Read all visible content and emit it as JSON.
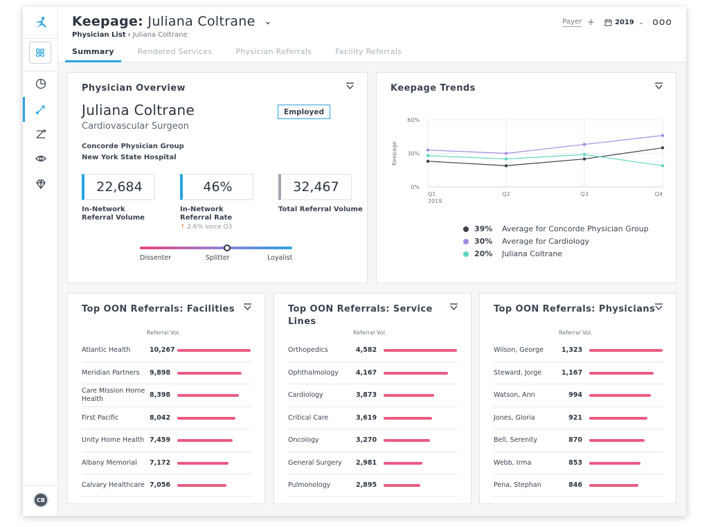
{
  "header": {
    "title_prefix": "Keepage:",
    "title_name": "Juliana Coltrane",
    "breadcrumb": [
      "Physician List",
      "Juliana Coltrane"
    ],
    "payer_label": "Payer",
    "year": "2019",
    "tabs": [
      {
        "label": "Summary",
        "active": true
      },
      {
        "label": "Rendered Services",
        "active": false
      },
      {
        "label": "Physician Referrals",
        "active": false
      },
      {
        "label": "Facility Referrals",
        "active": false
      }
    ]
  },
  "sidebar": {
    "icons": [
      "atom-icon",
      "pie-chart-icon",
      "referral-icon",
      "route-icon",
      "eye-icon",
      "diamond-icon"
    ],
    "active_index": 2,
    "avatar_initials": "CB"
  },
  "overview": {
    "title": "Physician Overview",
    "name": "Juliana Coltrane",
    "specialty": "Cardiovascular Surgeon",
    "badge": "Employed",
    "group": "Concorde Physician Group",
    "hospital": "New York State Hospital",
    "stats": [
      {
        "value": "22,684",
        "label_line1": "In-Network",
        "label_line2": "Referral Volume"
      },
      {
        "value": "46%",
        "label_line1": "In-Network",
        "label_line2": "Referral Rate"
      },
      {
        "value": "32,467",
        "label_line1": "Total Referral Volume",
        "label_line2": ""
      }
    ],
    "rate_note": "2.6% since Q3",
    "slider": {
      "labels": [
        "Dissenter",
        "Splitter",
        "Loyalist"
      ],
      "position": 0.57
    }
  },
  "trends": {
    "title": "Keepage Trends",
    "legend": [
      {
        "pct": "39%",
        "label": "Average for Concorde Physician Group",
        "color": "#3d4148"
      },
      {
        "pct": "30%",
        "label": "Average for Cardiology",
        "color": "#a48ce0"
      },
      {
        "pct": "20%",
        "label": "Juliana Coltrane",
        "color": "#5ed6c0"
      }
    ]
  },
  "chart_data": {
    "type": "line",
    "title": "Keepage Trends",
    "ylabel": "Keepage",
    "xlabel": "",
    "categories": [
      "Q1",
      "Q2",
      "Q3",
      "Q4"
    ],
    "x_sublabel": "2019",
    "yticks": [
      "0%",
      "30%",
      "60%"
    ],
    "ylim": [
      0,
      60
    ],
    "grid": true,
    "series": [
      {
        "name": "Average for Concorde Physician Group",
        "values": [
          23,
          19,
          25,
          35
        ],
        "color": "#3d4148"
      },
      {
        "name": "Average for Cardiology",
        "values": [
          33,
          30,
          38,
          46
        ],
        "color": "#a48ce0"
      },
      {
        "name": "Juliana Coltrane",
        "values": [
          28,
          25,
          29,
          19
        ],
        "color": "#5ed6c0"
      }
    ]
  },
  "oon_tables": [
    {
      "title": "Top OON Referrals: Facilities",
      "col_header": "Referral Vol.",
      "rows": [
        {
          "name": "Atlantic Health",
          "value": "10,267",
          "fraction": 1.0
        },
        {
          "name": "Meridian Partners",
          "value": "9,898",
          "fraction": 0.88
        },
        {
          "name": "Care Mission Home Health",
          "value": "8,398",
          "fraction": 0.84
        },
        {
          "name": "First Pacific",
          "value": "8,042",
          "fraction": 0.79
        },
        {
          "name": "Unity Home Health",
          "value": "7,459",
          "fraction": 0.75
        },
        {
          "name": "Albany Memorial",
          "value": "7,172",
          "fraction": 0.7
        },
        {
          "name": "Calvary Healthcare",
          "value": "7,056",
          "fraction": 0.67
        }
      ]
    },
    {
      "title": "Top OON Referrals: Service Lines",
      "col_header": "Referral Vol.",
      "rows": [
        {
          "name": "Orthopedics",
          "value": "4,582",
          "fraction": 1.0
        },
        {
          "name": "Ophthalmology",
          "value": "4,167",
          "fraction": 0.88
        },
        {
          "name": "Cardiology",
          "value": "3,873",
          "fraction": 0.69
        },
        {
          "name": "Critical Care",
          "value": "3,619",
          "fraction": 0.66
        },
        {
          "name": "Oncology",
          "value": "3,270",
          "fraction": 0.63
        },
        {
          "name": "General Surgery",
          "value": "2,981",
          "fraction": 0.53
        },
        {
          "name": "Pulmonology",
          "value": "2,895",
          "fraction": 0.5
        }
      ]
    },
    {
      "title": "Top OON Referrals: Physicians",
      "col_header": "Referral Vol.",
      "rows": [
        {
          "name": "Wilson, George",
          "value": "1,323",
          "fraction": 1.0
        },
        {
          "name": "Steward, Jorge",
          "value": "1,167",
          "fraction": 0.88
        },
        {
          "name": "Watson, Ann",
          "value": "994",
          "fraction": 0.84
        },
        {
          "name": "Jones, Gloria",
          "value": "921",
          "fraction": 0.79
        },
        {
          "name": "Bell, Serenity",
          "value": "870",
          "fraction": 0.75
        },
        {
          "name": "Webb, Irma",
          "value": "853",
          "fraction": 0.7
        },
        {
          "name": "Pena, Stephan",
          "value": "846",
          "fraction": 0.67
        }
      ]
    }
  ]
}
